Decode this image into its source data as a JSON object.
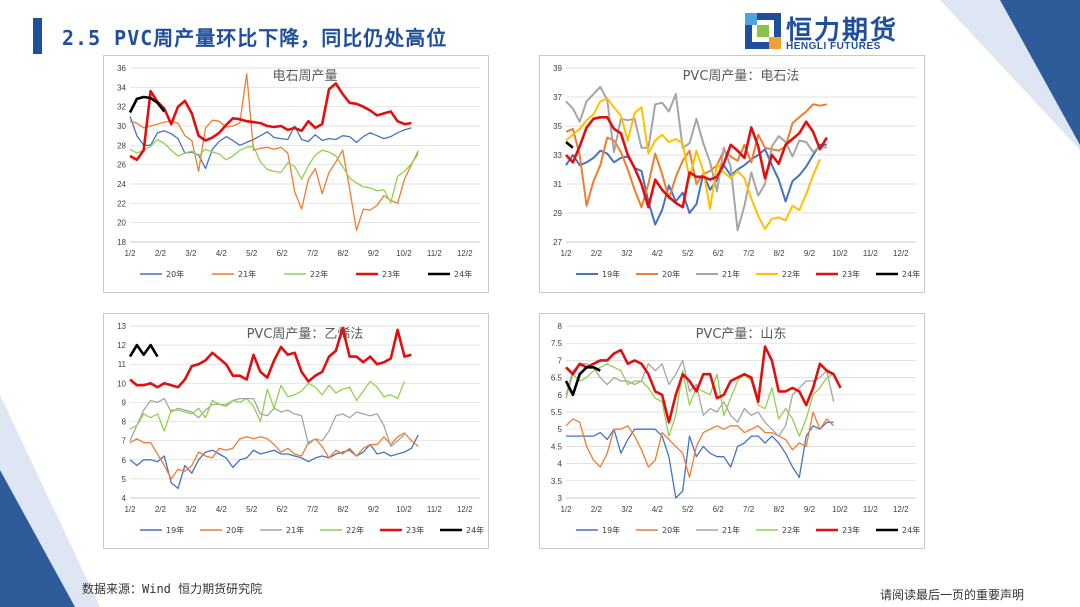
{
  "page": {
    "title": "2.5 PVC周产量环比下降，同比仍处高位",
    "source": "数据来源：Wind  恒力期货研究院",
    "disclaimer": "请阅读最后一页的重要声明"
  },
  "logo": {
    "cn": "恒力期货",
    "en": "HENGLI FUTURES"
  },
  "colors": {
    "brand": "#1f4e9b",
    "deco_dark": "#2e5c9a",
    "deco_light": "#dde6f2"
  },
  "chart_data": [
    {
      "id": "carbide",
      "type": "line",
      "title": "电石周产量",
      "ylim": [
        18,
        36
      ],
      "yticks": [
        18,
        20,
        22,
        24,
        26,
        28,
        30,
        32,
        34,
        36
      ],
      "x_labels": [
        "1/2",
        "2/2",
        "3/2",
        "4/2",
        "5/2",
        "6/2",
        "7/2",
        "8/2",
        "9/2",
        "10/2",
        "11/2",
        "12/2"
      ],
      "grid": true,
      "legend": "bottom",
      "series": [
        {
          "name": "20年",
          "color": "#4472c4",
          "width": 1.3,
          "values": [
            31,
            29,
            28,
            28,
            29.3,
            29.5,
            29.2,
            28.7,
            27.2,
            27.3,
            27,
            25.6,
            27.6,
            28.4,
            28.9,
            28.5,
            28,
            28.3,
            28.6,
            29,
            29.4,
            28.8,
            28.7,
            28.6,
            30,
            28.6,
            28.4,
            29.1,
            28.5,
            28.7,
            28.6,
            29,
            28.9,
            28.3,
            28.9,
            29.3,
            29,
            28.7,
            28.9,
            29.3,
            29.6,
            29.8
          ]
        },
        {
          "name": "21年",
          "color": "#ed7d31",
          "width": 1.3,
          "values": [
            30.5,
            30.3,
            29.8,
            30,
            30.2,
            30.4,
            30.5,
            30.3,
            29,
            28.5,
            25.3,
            29.8,
            30.6,
            30.5,
            29.9,
            30,
            30.3,
            35.4,
            27.5,
            27.7,
            27.8,
            27.6,
            27.8,
            27.2,
            23.2,
            21.4,
            24.5,
            25.6,
            23,
            25.2,
            26.3,
            27.5,
            23.5,
            19.2,
            21.4,
            21.3,
            21.8,
            22.8,
            22.3,
            22,
            24.5,
            26,
            27.4
          ]
        },
        {
          "name": "22年",
          "color": "#92d050",
          "width": 1.3,
          "values": [
            27.6,
            27.2,
            27.5,
            27.9,
            28.6,
            28.2,
            27.5,
            26.9,
            27.2,
            27.4,
            26.9,
            27.6,
            27.3,
            27.1,
            26.5,
            26.9,
            27.5,
            27.8,
            27.9,
            26.3,
            25.5,
            25.3,
            25.2,
            26.2,
            25.8,
            24.5,
            25.9,
            27,
            27.5,
            27.3,
            26.9,
            25.8,
            24.6,
            24.1,
            23.7,
            23.6,
            23.3,
            23.4,
            22.1,
            24.8,
            25.3,
            26.1,
            27.1
          ]
        },
        {
          "name": "23年",
          "color": "#e01010",
          "width": 2.6,
          "values": [
            26.9,
            26.5,
            27.5,
            33.6,
            32.5,
            31.8,
            30.2,
            32,
            32.6,
            31.3,
            29,
            28.5,
            28.8,
            29.3,
            30.1,
            30.8,
            30.7,
            30.5,
            30.4,
            30.3,
            30,
            29.9,
            30,
            29.6,
            29.8,
            29.5,
            30.5,
            29.8,
            30.2,
            33.8,
            34.4,
            33.3,
            32.4,
            32.3,
            32,
            31.6,
            31.1,
            31.3,
            31.5,
            30.5,
            30.2,
            30.3
          ]
        },
        {
          "name": "24年",
          "color": "#000000",
          "width": 2.6,
          "values": [
            31.4,
            32.8,
            33,
            32.9,
            32.4,
            31.5
          ]
        }
      ]
    },
    {
      "id": "carbide-method",
      "type": "line",
      "title": "PVC周产量：电石法",
      "ylim": [
        27,
        39
      ],
      "yticks": [
        27,
        29,
        31,
        33,
        35,
        37,
        39
      ],
      "x_labels": [
        "1/2",
        "2/2",
        "3/2",
        "4/2",
        "5/2",
        "6/2",
        "7/2",
        "8/2",
        "9/2",
        "10/2",
        "11/2",
        "12/2"
      ],
      "grid": true,
      "legend": "bottom",
      "series": [
        {
          "name": "19年",
          "color": "#4472c4",
          "width": 2,
          "values": [
            32.3,
            33,
            32.3,
            32.5,
            32.8,
            33.3,
            33.1,
            32.5,
            32.8,
            32.9,
            32.1,
            31.9,
            29.8,
            28.2,
            29.2,
            30.9,
            29.8,
            30.4,
            29,
            29.6,
            31.7,
            30.6,
            31.3,
            32.3,
            31.6,
            32,
            32.3,
            32.7,
            33,
            33.4,
            32.3,
            31.3,
            29.8,
            31.2,
            31.6,
            32.2,
            33,
            33.7,
            33.7
          ]
        },
        {
          "name": "20年",
          "color": "#ed7d31",
          "width": 2,
          "values": [
            34.6,
            34.8,
            33,
            29.5,
            31.2,
            32.3,
            34.2,
            34,
            33.2,
            32,
            30.6,
            29.4,
            31,
            33.1,
            31.7,
            30,
            31.5,
            32.6,
            33.3,
            31,
            31.7,
            31.9,
            32.3,
            33.3,
            32.9,
            32.6,
            33.7,
            32.5,
            34.4,
            33.5,
            33.4,
            33.3,
            33.6,
            35.2,
            35.6,
            36,
            36.5,
            36.4,
            36.5
          ]
        },
        {
          "name": "21年",
          "color": "#a5a5a5",
          "width": 2,
          "values": [
            36.7,
            36.2,
            35.3,
            36.7,
            37.2,
            37.7,
            36.8,
            33.2,
            35.5,
            35.4,
            35.5,
            33.5,
            33.5,
            36.5,
            36.6,
            36,
            37.2,
            33.5,
            33.8,
            35.5,
            33.8,
            32.5,
            30.5,
            33.5,
            32.2,
            27.8,
            29.5,
            31.8,
            30.2,
            31,
            33.6,
            34.3,
            33.9,
            32.9,
            34,
            33.9,
            33.2,
            33.6,
            33.5
          ]
        },
        {
          "name": "22年",
          "color": "#ffc000",
          "width": 2,
          "values": [
            34,
            34.4,
            34.8,
            35.4,
            35.8,
            36.7,
            36.9,
            36.3,
            35.7,
            34,
            35.9,
            36.3,
            33.1,
            34,
            34.4,
            33.9,
            34.1,
            33.8,
            31.4,
            33.3,
            31.9,
            29.3,
            32.4,
            31.8,
            31.4,
            31.9,
            31.4,
            30,
            28.8,
            27.9,
            28.6,
            28.7,
            28.5,
            29.5,
            29.2,
            30.3,
            31.6,
            32.7
          ]
        },
        {
          "name": "23年",
          "color": "#e01010",
          "width": 2.6,
          "values": [
            33,
            32.5,
            33.6,
            34.9,
            35.5,
            35.6,
            35.6,
            34.8,
            34.5,
            33,
            32.1,
            31,
            29.4,
            31.3,
            30.6,
            30.1,
            29.7,
            29.4,
            31.8,
            31.5,
            31.5,
            31.3,
            31.5,
            32.4,
            33.7,
            33.3,
            32.8,
            34.9,
            33.6,
            31.4,
            33,
            32.4,
            33.7,
            34.1,
            34.5,
            35.3,
            34.6,
            33.4,
            34.2
          ]
        },
        {
          "name": "24年",
          "color": "#000000",
          "width": 2.6,
          "values": [
            33.9,
            33.5
          ]
        }
      ]
    },
    {
      "id": "ethylene-method",
      "type": "line",
      "title": "PVC周产量：乙烯法",
      "ylim": [
        4,
        13
      ],
      "yticks": [
        4,
        5,
        6,
        7,
        8,
        9,
        10,
        11,
        12,
        13
      ],
      "x_labels": [
        "1/2",
        "2/2",
        "3/2",
        "4/2",
        "5/2",
        "6/2",
        "7/2",
        "8/2",
        "9/2",
        "10/2",
        "11/2",
        "12/2"
      ],
      "grid": true,
      "legend": "bottom",
      "series": [
        {
          "name": "19年",
          "color": "#4472c4",
          "width": 1.3,
          "values": [
            6,
            5.7,
            6,
            6,
            5.9,
            6.2,
            4.8,
            4.5,
            5.7,
            5.3,
            6,
            6.4,
            6.5,
            6.3,
            6.1,
            5.6,
            6,
            6.1,
            6.5,
            6.3,
            6.4,
            6.5,
            6.3,
            6.3,
            6.2,
            6.1,
            5.9,
            6.1,
            6.2,
            6.1,
            6.3,
            6.4,
            6.5,
            6.2,
            6.4,
            6.8,
            6.3,
            6.4,
            6.2,
            6.3,
            6.4,
            6.6,
            7.3
          ]
        },
        {
          "name": "20年",
          "color": "#ed7d31",
          "width": 1.3,
          "values": [
            6.9,
            7.1,
            6.9,
            6.9,
            6.3,
            5.7,
            5,
            5.5,
            5.4,
            5.7,
            6.4,
            6.2,
            6.1,
            6.6,
            6.5,
            6.6,
            7.1,
            7.2,
            7.1,
            7.2,
            7.1,
            6.8,
            6.4,
            6.6,
            6.3,
            6.2,
            6.9,
            7.1,
            6.7,
            6.1,
            6.5,
            6.3,
            6.6,
            6.2,
            6.6,
            6.8,
            6.8,
            7.2,
            6.8,
            7.2,
            7.4,
            7,
            6.7
          ]
        },
        {
          "name": "21年",
          "color": "#a5a5a5",
          "width": 1.3,
          "values": [
            7,
            7.8,
            8.6,
            9.1,
            9,
            9.2,
            8.5,
            8.7,
            8.6,
            8.5,
            8.2,
            8.6,
            8.9,
            8.9,
            8.8,
            9.1,
            9.2,
            9.2,
            9.2,
            8.4,
            8.3,
            8.7,
            8.5,
            8.6,
            8.4,
            8.3,
            6.8,
            7.1,
            7,
            7.5,
            8.3,
            8.4,
            8.2,
            8.5,
            8.4,
            8.3,
            8.4,
            7.8,
            6.7,
            7,
            7.3
          ]
        },
        {
          "name": "22年",
          "color": "#92d050",
          "width": 1.3,
          "values": [
            7.6,
            7.8,
            8.4,
            8.2,
            8.4,
            7.5,
            8.6,
            8.6,
            8.5,
            8.4,
            8.7,
            8.2,
            9.1,
            8.9,
            8.9,
            9.1,
            9,
            9.2,
            8.8,
            8,
            9.7,
            8.7,
            9.9,
            9.3,
            9.4,
            9.6,
            10,
            9.8,
            9.4,
            9.9,
            9.5,
            9.7,
            9.8,
            9.1,
            9.6,
            10.1,
            9.8,
            9.3,
            9.4,
            9.2,
            10.1
          ]
        },
        {
          "name": "23年",
          "color": "#e01010",
          "width": 2.6,
          "values": [
            10.2,
            9.9,
            9.9,
            10,
            9.8,
            10,
            9.9,
            9.8,
            10.2,
            10.9,
            11,
            11.2,
            11.6,
            11.3,
            11,
            10.4,
            10.4,
            10.2,
            11.5,
            10.6,
            10.3,
            11.2,
            11.9,
            11.5,
            11.6,
            10.6,
            10.1,
            10.4,
            10.6,
            11.4,
            11.7,
            12.9,
            11.4,
            11.4,
            11.1,
            11.4,
            11,
            11.1,
            11.3,
            12.8,
            11.4,
            11.5
          ]
        },
        {
          "name": "24年",
          "color": "#000000",
          "width": 2.6,
          "values": [
            11.4,
            12,
            11.5,
            12,
            11.4
          ]
        }
      ]
    },
    {
      "id": "shandong",
      "type": "line",
      "title": "PVC产量：山东",
      "ylim": [
        3,
        8
      ],
      "yticks": [
        3,
        3.5,
        4,
        4.5,
        5,
        5.5,
        6,
        6.5,
        7,
        7.5,
        8
      ],
      "x_labels": [
        "1/2",
        "2/2",
        "3/2",
        "4/2",
        "5/2",
        "6/2",
        "7/2",
        "8/2",
        "9/2",
        "10/2",
        "11/2",
        "12/2"
      ],
      "grid": true,
      "legend": "bottom",
      "series": [
        {
          "name": "19年",
          "color": "#4472c4",
          "width": 1.3,
          "values": [
            4.8,
            4.8,
            4.8,
            4.8,
            4.8,
            4.9,
            4.7,
            5,
            4.3,
            4.7,
            5,
            5,
            5,
            5,
            4.8,
            4.2,
            3,
            3.2,
            4.8,
            4.2,
            4.5,
            4.3,
            4.2,
            4.2,
            3.9,
            4.5,
            4.6,
            4.8,
            4.8,
            4.6,
            4.8,
            4.6,
            4.3,
            3.9,
            3.6,
            4.8,
            5.1,
            5,
            5.2,
            5.2
          ]
        },
        {
          "name": "20年",
          "color": "#ed7d31",
          "width": 1.3,
          "values": [
            5.1,
            5.3,
            5.2,
            4.5,
            4.1,
            3.9,
            4.3,
            5,
            5,
            5.1,
            4.8,
            4.4,
            3.9,
            4.1,
            4.9,
            4.7,
            4.5,
            4.3,
            3.6,
            4.5,
            4.9,
            5,
            5.1,
            5,
            5.1,
            5.1,
            4.9,
            5,
            5.1,
            4.9,
            4.9,
            4.8,
            4.7,
            4.4,
            4.6,
            4.5,
            5.5,
            5,
            5.3,
            5.1
          ]
        },
        {
          "name": "21年",
          "color": "#a5a5a5",
          "width": 1.3,
          "values": [
            6,
            6.7,
            6.9,
            6.9,
            6.8,
            6.5,
            6.3,
            6.5,
            6.4,
            6.4,
            6.3,
            6.4,
            6.9,
            6.7,
            6.9,
            6.3,
            6.6,
            7,
            6.1,
            6.3,
            5.4,
            5.6,
            5.5,
            5.8,
            5.4,
            5.2,
            5.6,
            5.4,
            5.5,
            5.2,
            5,
            4.8,
            5.1,
            6,
            6.2,
            6.4,
            6.4,
            6.5,
            6.7,
            5.8
          ]
        },
        {
          "name": "22年",
          "color": "#92d050",
          "width": 1.3,
          "values": [
            5.9,
            6.6,
            6.4,
            6.5,
            6.7,
            6.8,
            6.9,
            6.8,
            6.7,
            6.3,
            6.4,
            6.4,
            6.2,
            5.9,
            5.8,
            4.8,
            5.4,
            6.7,
            5.7,
            6.2,
            6.1,
            6,
            6.6,
            5.4,
            5.9,
            6.4,
            6.6,
            6.4,
            5.7,
            5.6,
            6.2,
            5.3,
            5.6,
            5.3,
            4.8,
            5.3,
            6,
            6.2,
            6.5,
            6.6
          ]
        },
        {
          "name": "23年",
          "color": "#e01010",
          "width": 2.6,
          "values": [
            6.8,
            6.6,
            6.9,
            6.8,
            6.9,
            7,
            7,
            7.2,
            7.3,
            6.9,
            7,
            6.9,
            6.6,
            6.1,
            6,
            5.2,
            6,
            6.6,
            6.4,
            6.1,
            6.6,
            6.6,
            5.9,
            6,
            6.4,
            6.5,
            6.6,
            6.5,
            5.8,
            7.4,
            7,
            6.1,
            6.1,
            6.2,
            6.1,
            5.7,
            6.2,
            6.9,
            6.7,
            6.6,
            6.2
          ]
        },
        {
          "name": "24年",
          "color": "#000000",
          "width": 2.6,
          "values": [
            6.4,
            6,
            6.6,
            6.8,
            6.8,
            6.7
          ]
        }
      ]
    }
  ]
}
